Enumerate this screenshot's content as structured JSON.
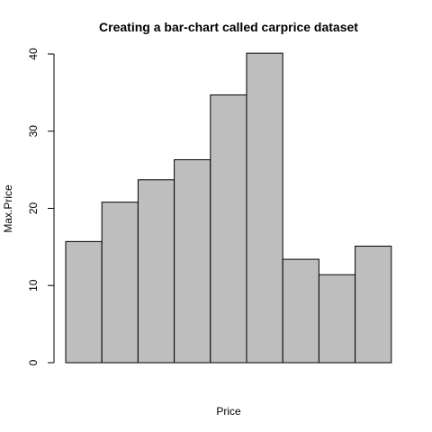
{
  "chart_data": {
    "type": "bar",
    "title": "Creating a bar-chart called carprice dataset",
    "xlabel": "Price",
    "ylabel": "Max.Price",
    "categories": [
      "",
      "",
      "",
      "",
      "",
      "",
      "",
      "",
      ""
    ],
    "values": [
      15.7,
      20.8,
      23.7,
      26.3,
      34.7,
      40.1,
      13.4,
      11.4,
      15.1
    ],
    "ylim": [
      0,
      40
    ],
    "yticks": [
      0,
      10,
      20,
      30,
      40
    ],
    "bar_color": "#bebebe",
    "border_color": "#000000",
    "grid": false,
    "legend": "none"
  }
}
